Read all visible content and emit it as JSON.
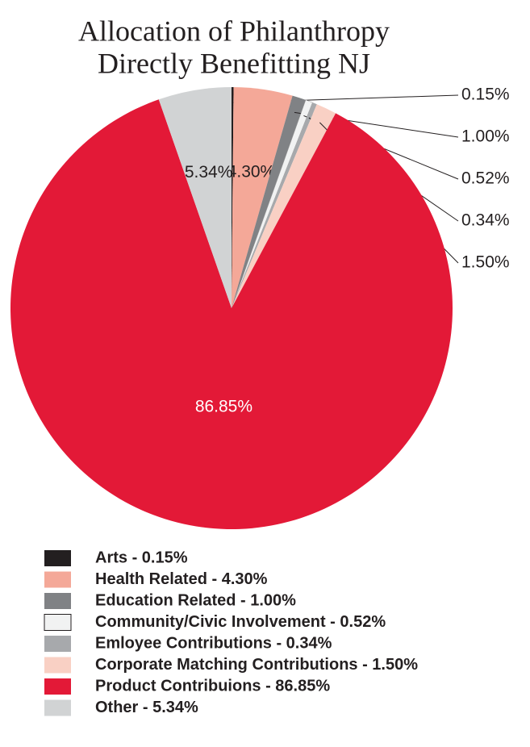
{
  "chart_data": {
    "type": "pie",
    "title": [
      "Allocation of Philanthropy",
      "Directly Benefitting NJ"
    ],
    "categories": [
      "Arts - 0.15%",
      "Health Related - 4.30%",
      "Education Related - 1.00%",
      "Community/Civic Involvement - 0.52%",
      "Emloyee Contributions - 0.34%",
      "Corporate Matching Contributions - 1.50%",
      "Product Contribuions - 86.85%",
      "Other - 5.34%"
    ],
    "values": [
      0.15,
      4.3,
      1.0,
      0.52,
      0.34,
      1.5,
      86.85,
      5.34
    ],
    "value_labels": [
      "0.15%",
      "4.30%",
      "1.00%",
      "0.52%",
      "0.34%",
      "1.50%",
      "86.85%",
      "5.34%"
    ],
    "colors": [
      "#231f20",
      "#f4a898",
      "#808285",
      "#f1f2f2",
      "#a7a9ac",
      "#f9d0c4",
      "#e31937",
      "#d1d3d4"
    ],
    "legend": "bottom-left"
  }
}
